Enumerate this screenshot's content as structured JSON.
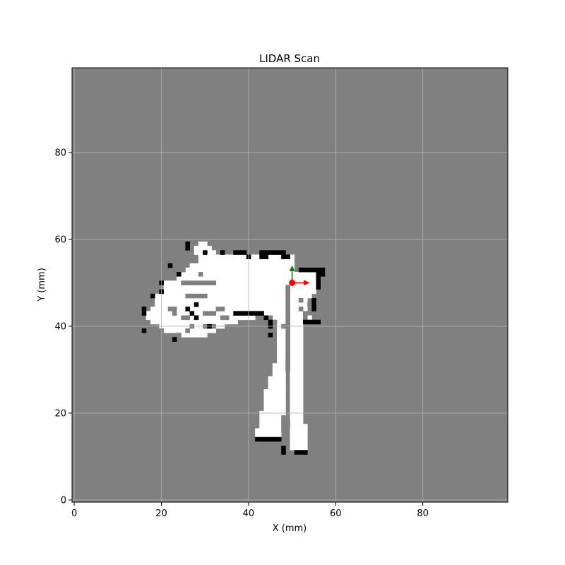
{
  "chart_data": {
    "type": "heatmap",
    "title": "LIDAR Scan",
    "xlabel": "X (mm)",
    "ylabel": "Y (mm)",
    "xlim": [
      -0.5,
      99.5
    ],
    "ylim": [
      -0.5,
      99.5
    ],
    "xticks": [
      0,
      20,
      40,
      60,
      80
    ],
    "yticks": [
      0,
      20,
      40,
      60,
      80
    ],
    "grid": true,
    "colors": {
      "unknown": "#808080",
      "free": "#ffffff",
      "occupied": "#000000",
      "grid": "#b0b0b0",
      "robot": "#ff0000",
      "x_arrow": "#ff0000",
      "y_arrow": "#008000"
    },
    "robot": {
      "x": 50,
      "y": 50,
      "heading_x": [
        50,
        54
      ],
      "heading_y": [
        50,
        54
      ]
    },
    "free_regions": [
      [
        29,
        59,
        2,
        1
      ],
      [
        28,
        58,
        4,
        1
      ],
      [
        28,
        57,
        5,
        1
      ],
      [
        29,
        56,
        22,
        1
      ],
      [
        29,
        55,
        22,
        1
      ],
      [
        27,
        54,
        24,
        1
      ],
      [
        26,
        53,
        25,
        1
      ],
      [
        25,
        52,
        32,
        1
      ],
      [
        24,
        51,
        33,
        1
      ],
      [
        21,
        50,
        36,
        1
      ],
      [
        21,
        49,
        36,
        1
      ],
      [
        20,
        48,
        36,
        1
      ],
      [
        19,
        47,
        36,
        1
      ],
      [
        19,
        46,
        35,
        1
      ],
      [
        19,
        45,
        36,
        1
      ],
      [
        18,
        44,
        36,
        1
      ],
      [
        17,
        43,
        25,
        1
      ],
      [
        44,
        43,
        10,
        1
      ],
      [
        17,
        42,
        25,
        1
      ],
      [
        44,
        42,
        11,
        1
      ],
      [
        18,
        41,
        20,
        1
      ],
      [
        47,
        41,
        6,
        1
      ],
      [
        20,
        40,
        15,
        1
      ],
      [
        47,
        40,
        6,
        1
      ],
      [
        21,
        39,
        12,
        1
      ],
      [
        47,
        39,
        6,
        1
      ],
      [
        25,
        38,
        6,
        1
      ],
      [
        47,
        38,
        6,
        1
      ],
      [
        47,
        37,
        6,
        1
      ],
      [
        47,
        36,
        6,
        1
      ],
      [
        47,
        35,
        6,
        1
      ],
      [
        47,
        34,
        6,
        1
      ],
      [
        47,
        33,
        6,
        1
      ],
      [
        47,
        32,
        6,
        1
      ],
      [
        46,
        31,
        7,
        1
      ],
      [
        46,
        30,
        3,
        1
      ],
      [
        50,
        30,
        3,
        1
      ],
      [
        46,
        29,
        3,
        1
      ],
      [
        50,
        29,
        3,
        1
      ],
      [
        45,
        28,
        4,
        1
      ],
      [
        50,
        28,
        3,
        1
      ],
      [
        45,
        27,
        4,
        1
      ],
      [
        50,
        27,
        3,
        1
      ],
      [
        45,
        26,
        4,
        1
      ],
      [
        50,
        26,
        3,
        1
      ],
      [
        44,
        25,
        5,
        1
      ],
      [
        50,
        25,
        3,
        1
      ],
      [
        44,
        24,
        5,
        1
      ],
      [
        50,
        24,
        3,
        1
      ],
      [
        44,
        23,
        5,
        1
      ],
      [
        50,
        23,
        3,
        1
      ],
      [
        44,
        22,
        5,
        1
      ],
      [
        50,
        22,
        3,
        1
      ],
      [
        44,
        21,
        5,
        1
      ],
      [
        50,
        21,
        3,
        1
      ],
      [
        43,
        20,
        6,
        1
      ],
      [
        50,
        20,
        3,
        1
      ],
      [
        43,
        19,
        6,
        1
      ],
      [
        50,
        19,
        3,
        1
      ],
      [
        43,
        18,
        6,
        1
      ],
      [
        50,
        18,
        3,
        1
      ],
      [
        43,
        17,
        6,
        1
      ],
      [
        50,
        17,
        4,
        1
      ],
      [
        42,
        16,
        6,
        1
      ],
      [
        50,
        16,
        4,
        1
      ],
      [
        42,
        15,
        6,
        1
      ],
      [
        50,
        15,
        4,
        1
      ],
      [
        50,
        14,
        4,
        1
      ],
      [
        50,
        13,
        4,
        1
      ],
      [
        50,
        12,
        4,
        1
      ]
    ],
    "unknown_patches": [
      [
        24,
        53,
        2,
        1
      ],
      [
        25,
        50,
        8,
        1
      ],
      [
        26,
        47,
        5,
        1
      ],
      [
        29,
        52,
        1,
        1
      ],
      [
        33,
        44,
        2,
        1
      ],
      [
        22,
        44,
        2,
        1
      ],
      [
        25,
        42,
        2,
        1
      ],
      [
        23,
        43,
        1,
        1
      ],
      [
        30,
        43,
        3,
        1
      ],
      [
        34,
        42,
        2,
        1
      ],
      [
        27,
        40,
        1,
        1
      ],
      [
        30,
        40,
        1,
        1
      ],
      [
        32,
        40,
        1,
        1
      ],
      [
        26,
        39,
        1,
        1
      ],
      [
        24,
        38,
        1,
        1
      ],
      [
        20,
        39,
        1,
        1
      ],
      [
        46,
        41,
        1,
        1
      ],
      [
        45,
        42,
        1,
        1
      ],
      [
        48,
        40,
        1,
        1
      ],
      [
        52,
        44,
        1,
        1
      ],
      [
        53,
        43,
        1,
        1
      ],
      [
        54,
        45,
        1,
        1
      ],
      [
        49,
        31,
        1,
        1
      ],
      [
        49,
        18,
        1,
        1
      ],
      [
        49,
        17,
        1,
        1
      ],
      [
        49,
        30,
        1,
        20
      ],
      [
        48,
        16,
        1,
        4
      ],
      [
        52,
        46,
        1,
        1
      ],
      [
        53,
        42,
        1,
        1
      ]
    ],
    "occupied_cells": [
      [
        26,
        58,
        1,
        2
      ],
      [
        30,
        57,
        1,
        1
      ],
      [
        34,
        57,
        1,
        1
      ],
      [
        37,
        57,
        3,
        1
      ],
      [
        40,
        56,
        1,
        1
      ],
      [
        43,
        57,
        6,
        1
      ],
      [
        43,
        56,
        2,
        1
      ],
      [
        48,
        56,
        2,
        1
      ],
      [
        52,
        53,
        6,
        1
      ],
      [
        56,
        52,
        2,
        1
      ],
      [
        56,
        49,
        1,
        3
      ],
      [
        55,
        44,
        1,
        3
      ],
      [
        53,
        41,
        4,
        1
      ],
      [
        37,
        43,
        7,
        1
      ],
      [
        44,
        42,
        1,
        1
      ],
      [
        45,
        40,
        1,
        2
      ],
      [
        45,
        38,
        1,
        1
      ],
      [
        22,
        54,
        1,
        1
      ],
      [
        24,
        52,
        1,
        1
      ],
      [
        20,
        50,
        1,
        1
      ],
      [
        20,
        48,
        1,
        1
      ],
      [
        18,
        47,
        1,
        1
      ],
      [
        16,
        43,
        1,
        2
      ],
      [
        27,
        43,
        1,
        1
      ],
      [
        28,
        42,
        1,
        1
      ],
      [
        26,
        44,
        1,
        1
      ],
      [
        28,
        45,
        1,
        1
      ],
      [
        16,
        39,
        1,
        1
      ],
      [
        23,
        37,
        1,
        1
      ],
      [
        31,
        40,
        1,
        1
      ],
      [
        42,
        14,
        6,
        1
      ],
      [
        48,
        11,
        1,
        2
      ],
      [
        51,
        11,
        3,
        1
      ]
    ]
  }
}
